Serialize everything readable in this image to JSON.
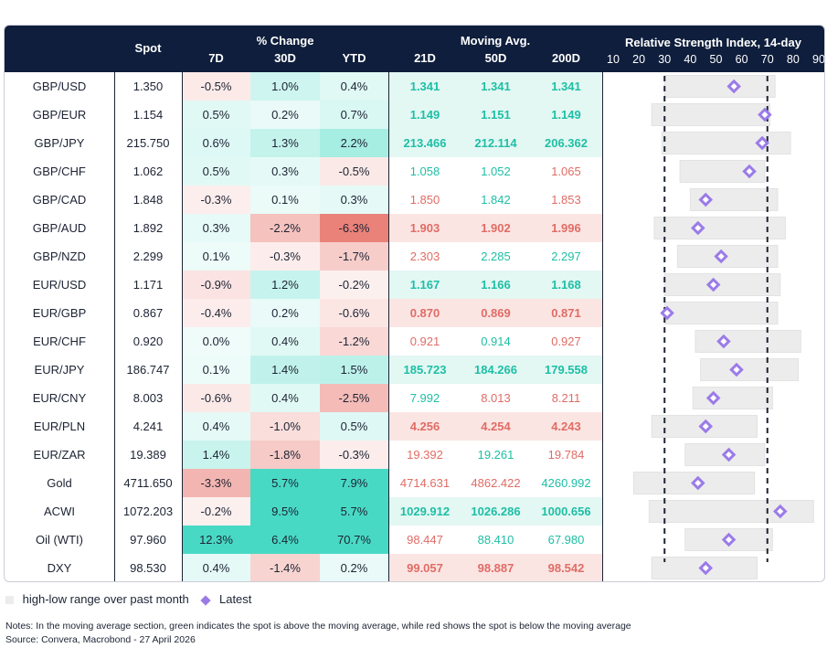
{
  "header": {
    "spot": "Spot",
    "pct_change": "% Change",
    "d7": "7D",
    "d30": "30D",
    "ytd": "YTD",
    "moving_avg": "Moving Avg.",
    "ma21": "21D",
    "ma50": "50D",
    "ma200": "200D",
    "rsi_title": "Relative Strength Index, 14-day"
  },
  "colors": {
    "header_bg": "#0f1e3c",
    "green_text": "#1ebfa5",
    "red_text": "#e06c65",
    "latest_marker": "#9b7be8",
    "range_bar": "#ececec",
    "threshold_line": "#1c2333"
  },
  "chart_data": {
    "type": "table",
    "title": "Relative Strength Index, 14-day",
    "rsi_axis": {
      "ticks": [
        10,
        20,
        30,
        40,
        50,
        60,
        70,
        80,
        90
      ],
      "range": [
        10,
        90
      ],
      "threshold_lines": [
        30,
        70
      ]
    },
    "rows": [
      {
        "name": "GBP/USD",
        "spot": "1.350",
        "d7": "-0.5%",
        "d30": "1.0%",
        "ytd": "0.4%",
        "ma21": "1.341",
        "ma50": "1.341",
        "ma200": "1.341",
        "ma_colors": [
          "green",
          "green",
          "green"
        ],
        "ma_bold": [
          true,
          true,
          true
        ],
        "rsi_low": 30,
        "rsi_high": 73,
        "rsi_latest": 57
      },
      {
        "name": "GBP/EUR",
        "spot": "1.154",
        "d7": "0.5%",
        "d30": "0.2%",
        "ytd": "0.7%",
        "ma21": "1.149",
        "ma50": "1.151",
        "ma200": "1.149",
        "ma_colors": [
          "green",
          "green",
          "green"
        ],
        "ma_bold": [
          true,
          true,
          true
        ],
        "rsi_low": 25,
        "rsi_high": 71,
        "rsi_latest": 69
      },
      {
        "name": "GBP/JPY",
        "spot": "215.750",
        "d7": "0.6%",
        "d30": "1.3%",
        "ytd": "2.2%",
        "ma21": "213.466",
        "ma50": "212.114",
        "ma200": "206.362",
        "ma_colors": [
          "green",
          "green",
          "green"
        ],
        "ma_bold": [
          true,
          true,
          true
        ],
        "rsi_low": 29,
        "rsi_high": 79,
        "rsi_latest": 68
      },
      {
        "name": "GBP/CHF",
        "spot": "1.062",
        "d7": "0.5%",
        "d30": "0.3%",
        "ytd": "-0.5%",
        "ma21": "1.058",
        "ma50": "1.052",
        "ma200": "1.065",
        "ma_colors": [
          "green",
          "green",
          "red"
        ],
        "ma_bold": [
          false,
          false,
          false
        ],
        "rsi_low": 36,
        "rsi_high": 69,
        "rsi_latest": 63
      },
      {
        "name": "GBP/CAD",
        "spot": "1.848",
        "d7": "-0.3%",
        "d30": "0.1%",
        "ytd": "0.3%",
        "ma21": "1.850",
        "ma50": "1.842",
        "ma200": "1.853",
        "ma_colors": [
          "red",
          "green",
          "red"
        ],
        "ma_bold": [
          false,
          false,
          false
        ],
        "rsi_low": 40,
        "rsi_high": 74,
        "rsi_latest": 46
      },
      {
        "name": "GBP/AUD",
        "spot": "1.892",
        "d7": "0.3%",
        "d30": "-2.2%",
        "ytd": "-6.3%",
        "ma21": "1.903",
        "ma50": "1.902",
        "ma200": "1.996",
        "ma_colors": [
          "red",
          "red",
          "red"
        ],
        "ma_bold": [
          true,
          true,
          true
        ],
        "rsi_low": 26,
        "rsi_high": 77,
        "rsi_latest": 43
      },
      {
        "name": "GBP/NZD",
        "spot": "2.299",
        "d7": "0.1%",
        "d30": "-0.3%",
        "ytd": "-1.7%",
        "ma21": "2.303",
        "ma50": "2.285",
        "ma200": "2.297",
        "ma_colors": [
          "red",
          "green",
          "green"
        ],
        "ma_bold": [
          false,
          false,
          false
        ],
        "rsi_low": 35,
        "rsi_high": 74,
        "rsi_latest": 52
      },
      {
        "name": "EUR/USD",
        "spot": "1.171",
        "d7": "-0.9%",
        "d30": "1.2%",
        "ytd": "-0.2%",
        "ma21": "1.167",
        "ma50": "1.166",
        "ma200": "1.168",
        "ma_colors": [
          "green",
          "green",
          "green"
        ],
        "ma_bold": [
          true,
          true,
          true
        ],
        "rsi_low": 30,
        "rsi_high": 75,
        "rsi_latest": 49
      },
      {
        "name": "EUR/GBP",
        "spot": "0.867",
        "d7": "-0.4%",
        "d30": "0.2%",
        "ytd": "-0.6%",
        "ma21": "0.870",
        "ma50": "0.869",
        "ma200": "0.871",
        "ma_colors": [
          "red",
          "red",
          "red"
        ],
        "ma_bold": [
          true,
          true,
          true
        ],
        "rsi_low": 30,
        "rsi_high": 74,
        "rsi_latest": 31
      },
      {
        "name": "EUR/CHF",
        "spot": "0.920",
        "d7": "0.0%",
        "d30": "0.4%",
        "ytd": "-1.2%",
        "ma21": "0.921",
        "ma50": "0.914",
        "ma200": "0.927",
        "ma_colors": [
          "red",
          "green",
          "red"
        ],
        "ma_bold": [
          false,
          false,
          false
        ],
        "rsi_low": 42,
        "rsi_high": 83,
        "rsi_latest": 53
      },
      {
        "name": "EUR/JPY",
        "spot": "186.747",
        "d7": "0.1%",
        "d30": "1.4%",
        "ytd": "1.5%",
        "ma21": "185.723",
        "ma50": "184.266",
        "ma200": "179.558",
        "ma_colors": [
          "green",
          "green",
          "green"
        ],
        "ma_bold": [
          true,
          true,
          true
        ],
        "rsi_low": 44,
        "rsi_high": 82,
        "rsi_latest": 58
      },
      {
        "name": "EUR/CNY",
        "spot": "8.003",
        "d7": "-0.6%",
        "d30": "0.4%",
        "ytd": "-2.5%",
        "ma21": "7.992",
        "ma50": "8.013",
        "ma200": "8.211",
        "ma_colors": [
          "green",
          "red",
          "red"
        ],
        "ma_bold": [
          false,
          false,
          false
        ],
        "rsi_low": 41,
        "rsi_high": 72,
        "rsi_latest": 49
      },
      {
        "name": "EUR/PLN",
        "spot": "4.241",
        "d7": "0.4%",
        "d30": "-1.0%",
        "ytd": "0.5%",
        "ma21": "4.256",
        "ma50": "4.254",
        "ma200": "4.243",
        "ma_colors": [
          "red",
          "red",
          "red"
        ],
        "ma_bold": [
          true,
          true,
          true
        ],
        "rsi_low": 25,
        "rsi_high": 66,
        "rsi_latest": 46
      },
      {
        "name": "EUR/ZAR",
        "spot": "19.389",
        "d7": "1.4%",
        "d30": "-1.8%",
        "ytd": "-0.3%",
        "ma21": "19.392",
        "ma50": "19.261",
        "ma200": "19.784",
        "ma_colors": [
          "red",
          "green",
          "red"
        ],
        "ma_bold": [
          false,
          false,
          false
        ],
        "rsi_low": 38,
        "rsi_high": 69,
        "rsi_latest": 55
      },
      {
        "name": "Gold",
        "spot": "4711.650",
        "d7": "-3.3%",
        "d30": "5.7%",
        "ytd": "7.9%",
        "ma21": "4714.631",
        "ma50": "4862.422",
        "ma200": "4260.992",
        "ma_colors": [
          "red",
          "red",
          "green"
        ],
        "ma_bold": [
          false,
          false,
          false
        ],
        "rsi_low": 18,
        "rsi_high": 65,
        "rsi_latest": 43
      },
      {
        "name": "ACWI",
        "spot": "1072.203",
        "d7": "-0.2%",
        "d30": "9.5%",
        "ytd": "5.7%",
        "ma21": "1029.912",
        "ma50": "1026.286",
        "ma200": "1000.656",
        "ma_colors": [
          "green",
          "green",
          "green"
        ],
        "ma_bold": [
          true,
          true,
          true
        ],
        "rsi_low": 24,
        "rsi_high": 88,
        "rsi_latest": 75
      },
      {
        "name": "Oil (WTI)",
        "spot": "97.960",
        "d7": "12.3%",
        "d30": "6.4%",
        "ytd": "70.7%",
        "ma21": "98.447",
        "ma50": "88.410",
        "ma200": "67.980",
        "ma_colors": [
          "red",
          "green",
          "green"
        ],
        "ma_bold": [
          false,
          false,
          false
        ],
        "rsi_low": 38,
        "rsi_high": 72,
        "rsi_latest": 55
      },
      {
        "name": "DXY",
        "spot": "98.530",
        "d7": "0.4%",
        "d30": "-1.4%",
        "ytd": "0.2%",
        "ma21": "99.057",
        "ma50": "98.887",
        "ma200": "98.542",
        "ma_colors": [
          "red",
          "red",
          "red"
        ],
        "ma_bold": [
          true,
          true,
          true
        ],
        "rsi_low": 25,
        "rsi_high": 66,
        "rsi_latest": 46
      }
    ]
  },
  "legend": {
    "range_label": "high-low range over past month",
    "latest_label": "Latest"
  },
  "notes": {
    "line1": "Notes: In the moving average section, green indicates the spot is above the moving average, while red shows the spot is below the moving average",
    "line2": "Source: Convera, Macrobond - 27 April 2026"
  }
}
